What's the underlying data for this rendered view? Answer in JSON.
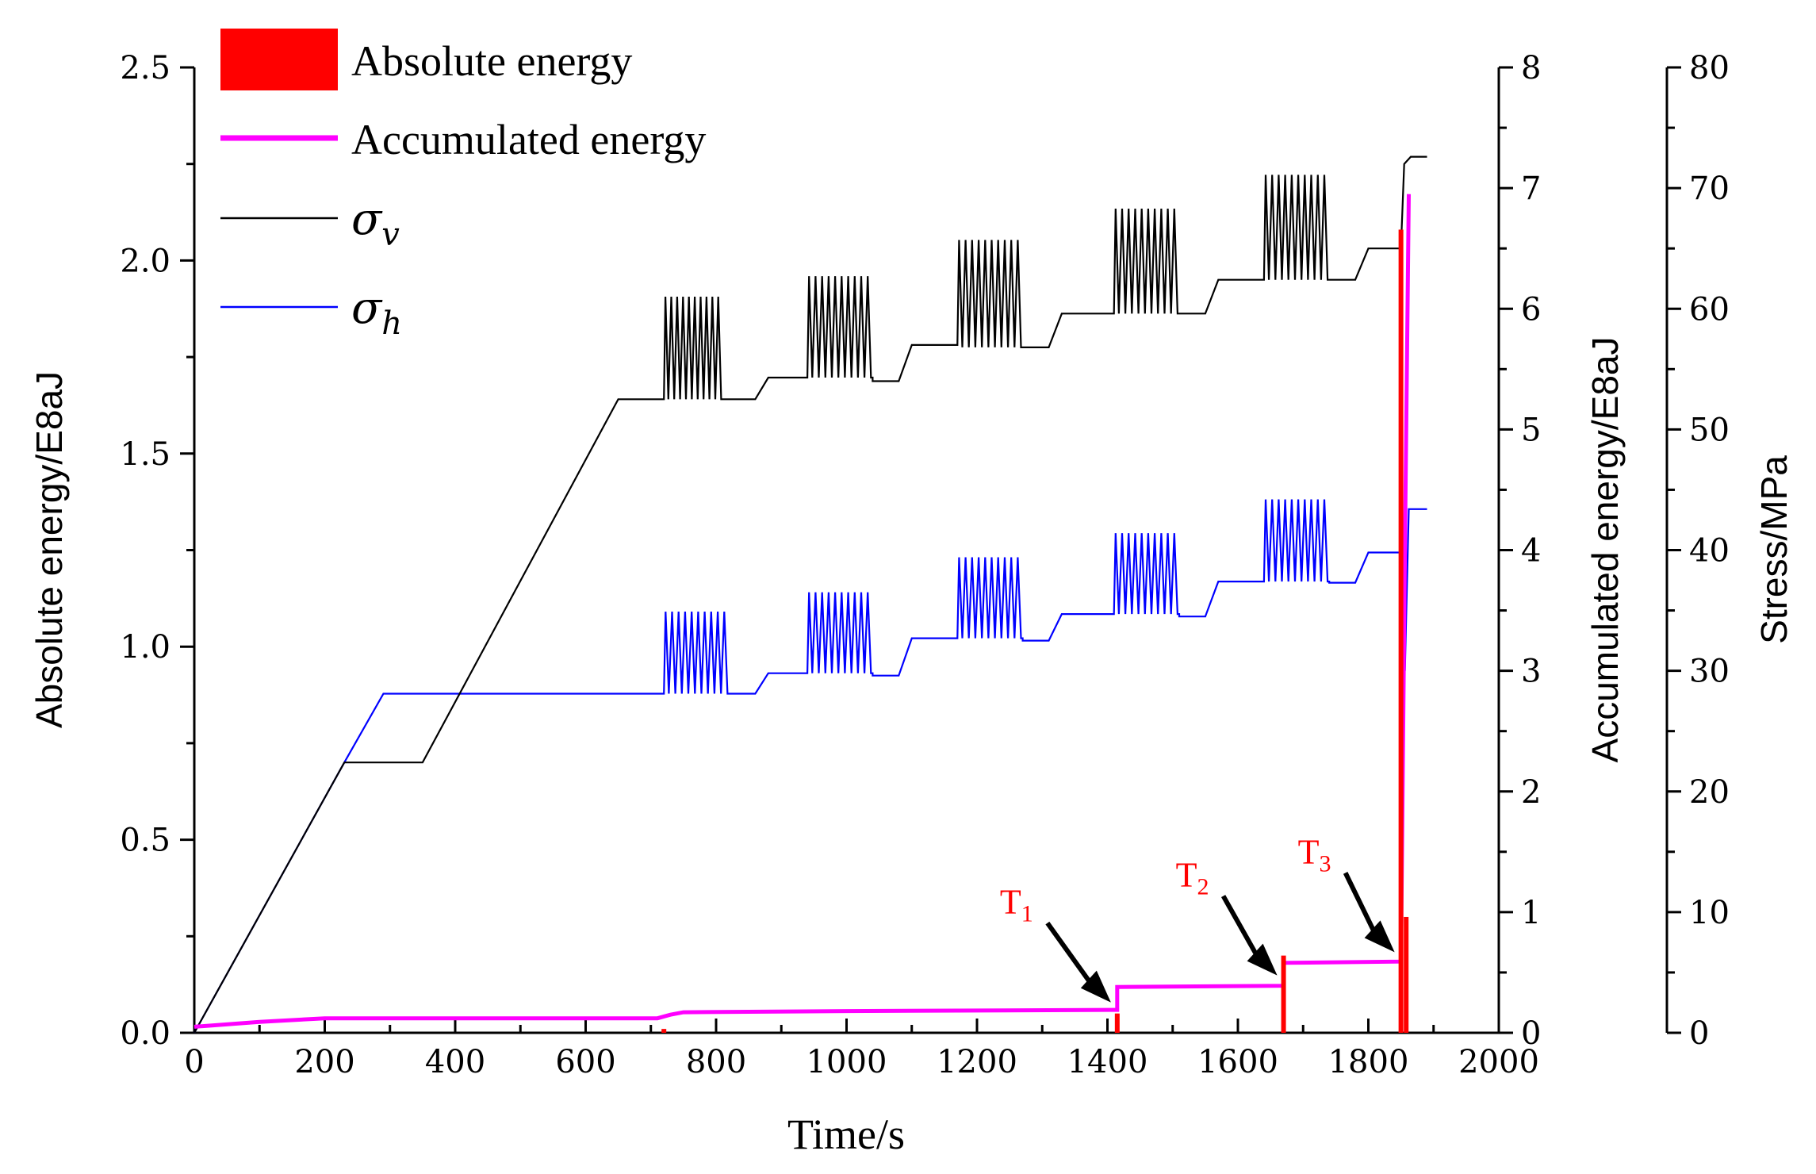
{
  "chart_data": {
    "type": "line",
    "title": "",
    "xlabel": "Time/s",
    "ylabel_left": "Absolute energy/E8aJ",
    "ylabel_right1": "Accumulated energy/E8aJ",
    "ylabel_right2": "Stress/MPa",
    "xlim": [
      0,
      2000
    ],
    "ylim_left": [
      0,
      2.5
    ],
    "ylim_right1": [
      0,
      8
    ],
    "ylim_right2": [
      0,
      80
    ],
    "x_ticks": [
      "0",
      "200",
      "400",
      "600",
      "800",
      "1000",
      "1200",
      "1400",
      "1600",
      "1800",
      "2000"
    ],
    "y_ticks_left": [
      "0.0",
      "0.5",
      "1.0",
      "1.5",
      "2.0",
      "2.5"
    ],
    "y_ticks_right1": [
      "0",
      "1",
      "2",
      "3",
      "4",
      "5",
      "6",
      "7",
      "8"
    ],
    "y_ticks_right2": [
      "0",
      "10",
      "20",
      "30",
      "40",
      "50",
      "60",
      "70",
      "80"
    ],
    "legend": [
      {
        "label": "Absolute energy",
        "kind": "bar",
        "color": "#ff0000"
      },
      {
        "label": "Accumulated energy",
        "kind": "line",
        "color": "#ff00ff"
      },
      {
        "symbol": "σ",
        "subscript": "v",
        "kind": "line",
        "color": "#000000"
      },
      {
        "symbol": "σ",
        "subscript": "h",
        "kind": "line",
        "color": "#0000ff"
      }
    ],
    "legend_position": "top-left",
    "annotations": [
      {
        "label": "T",
        "subscript": "1",
        "x": 1415,
        "energy": 0.05
      },
      {
        "label": "T",
        "subscript": "2",
        "x": 1670,
        "energy": 0.12
      },
      {
        "label": "T",
        "subscript": "3",
        "x": 1850,
        "energy": 0.18
      }
    ],
    "series": {
      "absolute_energy": {
        "axis": "left",
        "color": "#ff0000",
        "spikes": [
          [
            720,
            0.01
          ],
          [
            1415,
            0.05
          ],
          [
            1670,
            0.2
          ],
          [
            1850,
            2.08
          ],
          [
            1858,
            0.3
          ]
        ]
      },
      "accumulated_energy": {
        "axis": "right1",
        "color": "#ff00ff",
        "x": [
          0,
          100,
          200,
          710,
          730,
          750,
          1000,
          1415,
          1415,
          1670,
          1670,
          1850,
          1856,
          1862
        ],
        "y": [
          0.05,
          0.09,
          0.12,
          0.12,
          0.15,
          0.17,
          0.18,
          0.19,
          0.38,
          0.39,
          0.58,
          0.59,
          4.0,
          6.95
        ]
      },
      "sigma_v": {
        "axis": "right2",
        "color": "#000000",
        "x": [
          0,
          230,
          350,
          650,
          720,
          820,
          860,
          880,
          940,
          1040,
          1080,
          1100,
          1170,
          1270,
          1310,
          1330,
          1410,
          1510,
          1550,
          1570,
          1640,
          1740,
          1780,
          1800,
          1850,
          1855,
          1865,
          1890
        ],
        "y": [
          0,
          22.4,
          22.4,
          52.5,
          52.5,
          52.5,
          52.5,
          54.3,
          54.3,
          54.0,
          54.0,
          57.0,
          57.0,
          56.8,
          56.8,
          59.6,
          59.6,
          59.6,
          59.6,
          62.4,
          62.4,
          62.4,
          62.4,
          65.0,
          65.0,
          72.0,
          72.6,
          72.6
        ],
        "cycles": [
          {
            "x0": 720,
            "x1": 810,
            "low": 52.5,
            "high": 61.0,
            "n": 10
          },
          {
            "x0": 940,
            "x1": 1040,
            "low": 54.3,
            "high": 62.7,
            "n": 10
          },
          {
            "x0": 1170,
            "x1": 1270,
            "low": 56.8,
            "high": 65.7,
            "n": 10
          },
          {
            "x0": 1410,
            "x1": 1510,
            "low": 59.6,
            "high": 68.3,
            "n": 10
          },
          {
            "x0": 1640,
            "x1": 1740,
            "low": 62.4,
            "high": 71.1,
            "n": 10
          }
        ]
      },
      "sigma_h": {
        "axis": "right2",
        "color": "#0000ff",
        "x": [
          0,
          230,
          290,
          720,
          820,
          860,
          880,
          940,
          1040,
          1080,
          1100,
          1170,
          1270,
          1310,
          1330,
          1410,
          1510,
          1550,
          1570,
          1640,
          1740,
          1780,
          1800,
          1850,
          1856,
          1862,
          1890
        ],
        "y": [
          0,
          22.4,
          28.1,
          28.1,
          28.1,
          28.1,
          29.8,
          29.8,
          29.6,
          29.6,
          32.7,
          32.7,
          32.5,
          32.5,
          34.7,
          34.7,
          34.5,
          34.5,
          37.4,
          37.4,
          37.3,
          37.3,
          39.8,
          39.8,
          30.0,
          43.4,
          43.4
        ],
        "cycles": [
          {
            "x0": 720,
            "x1": 820,
            "low": 28.1,
            "high": 34.9,
            "n": 10
          },
          {
            "x0": 940,
            "x1": 1040,
            "low": 29.8,
            "high": 36.5,
            "n": 10
          },
          {
            "x0": 1170,
            "x1": 1270,
            "low": 32.7,
            "high": 39.4,
            "n": 10
          },
          {
            "x0": 1410,
            "x1": 1510,
            "low": 34.7,
            "high": 41.4,
            "n": 10
          },
          {
            "x0": 1640,
            "x1": 1740,
            "low": 37.4,
            "high": 44.2,
            "n": 10
          }
        ]
      }
    }
  }
}
